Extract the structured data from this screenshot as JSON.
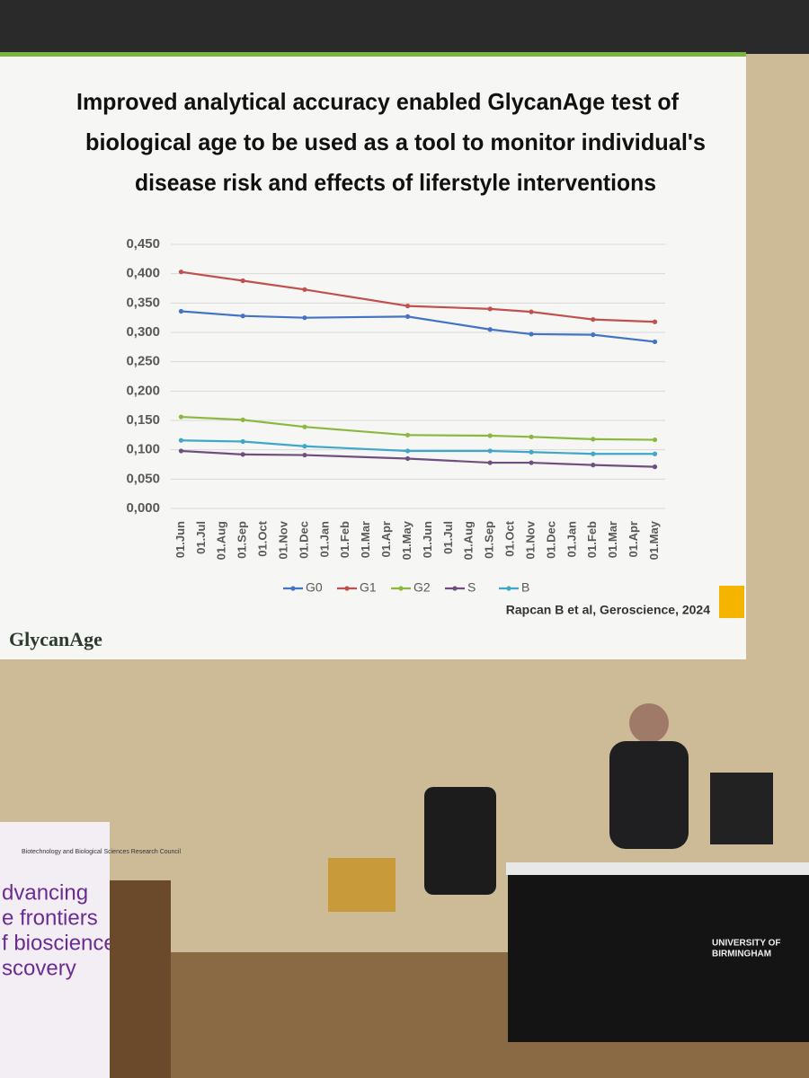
{
  "chart_data": {
    "type": "line",
    "title": [
      "Improved analytical accuracy enabled GlycanAge test of",
      "biological age to be used as a tool to monitor individual's",
      "disease risk and effects of liferstyle interventions"
    ],
    "categories": [
      "01.Jun",
      "01.Jul",
      "01.Aug",
      "01.Sep",
      "01.Oct",
      "01.Nov",
      "01.Dec",
      "01.Jan",
      "01.Feb",
      "01.Mar",
      "01.Apr",
      "01.May",
      "01.Jun",
      "01.Jul",
      "01.Aug",
      "01.Sep",
      "01.Oct",
      "01.Nov",
      "01.Dec",
      "01.Jan",
      "01.Feb",
      "01.Mar",
      "01.Apr",
      "01.May"
    ],
    "series": [
      {
        "name": "G0",
        "color": "#4472c4",
        "values": [
          0.336,
          null,
          null,
          0.328,
          null,
          null,
          0.325,
          null,
          null,
          null,
          null,
          0.327,
          null,
          null,
          null,
          0.305,
          null,
          0.297,
          null,
          null,
          0.296,
          null,
          null,
          0.284
        ]
      },
      {
        "name": "G1",
        "color": "#c0504d",
        "values": [
          0.403,
          null,
          null,
          0.388,
          null,
          null,
          0.373,
          null,
          null,
          null,
          null,
          0.345,
          null,
          null,
          null,
          0.34,
          null,
          0.335,
          null,
          null,
          0.322,
          null,
          null,
          0.318
        ]
      },
      {
        "name": "G2",
        "color": "#8cb840",
        "values": [
          0.156,
          null,
          null,
          0.151,
          null,
          null,
          0.139,
          null,
          null,
          null,
          null,
          0.125,
          null,
          null,
          null,
          0.124,
          null,
          0.122,
          null,
          null,
          0.118,
          null,
          null,
          0.117
        ]
      },
      {
        "name": "S",
        "color": "#6f4f7f",
        "values": [
          0.098,
          null,
          null,
          0.092,
          null,
          null,
          0.091,
          null,
          null,
          null,
          null,
          0.085,
          null,
          null,
          null,
          0.078,
          null,
          0.078,
          null,
          null,
          0.074,
          null,
          null,
          0.071
        ]
      },
      {
        "name": "B",
        "color": "#3fa7c9",
        "values": [
          0.116,
          null,
          null,
          0.114,
          null,
          null,
          0.106,
          null,
          null,
          null,
          null,
          0.098,
          null,
          null,
          null,
          0.098,
          null,
          0.096,
          null,
          null,
          0.093,
          null,
          null,
          0.093
        ]
      }
    ],
    "ylim": [
      0,
      0.45
    ],
    "yticks": [
      {
        "value": 0,
        "label": "0,000"
      },
      {
        "value": 0.05,
        "label": "0,050"
      },
      {
        "value": 0.1,
        "label": "0,100"
      },
      {
        "value": 0.15,
        "label": "0,150"
      },
      {
        "value": 0.2,
        "label": "0,200"
      },
      {
        "value": 0.25,
        "label": "0,250"
      },
      {
        "value": 0.3,
        "label": "0,300"
      },
      {
        "value": 0.35,
        "label": "0,350"
      },
      {
        "value": 0.4,
        "label": "0,400"
      },
      {
        "value": 0.45,
        "label": "0,450"
      }
    ],
    "grid": true,
    "legend": "bottom",
    "citation": "Rapcan B et al, Geroscience, 2024",
    "logo": "GlycanAge"
  },
  "scene": {
    "banner": [
      "Biotechnology and Biological Sciences Research Council",
      "dvancing",
      "e frontiers",
      "f bioscience",
      "scovery"
    ],
    "university": [
      "UNIVERSITY OF",
      "BIRMINGHAM"
    ]
  }
}
